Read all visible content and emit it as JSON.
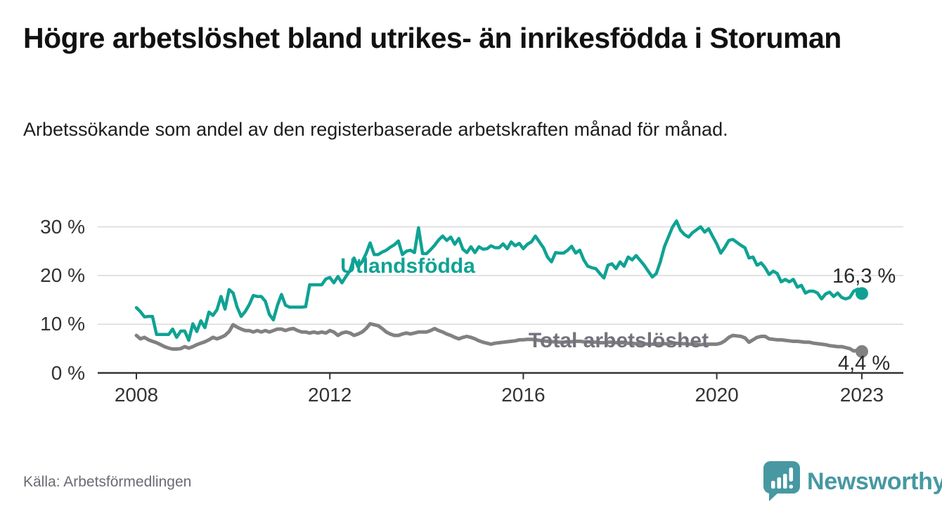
{
  "header": {
    "title": "Högre arbetslöshet bland utrikes- än inrikesfödda i Storuman",
    "subtitle": "Arbetssökande som andel av den registerbaserade arbetskraften månad för månad."
  },
  "footer": {
    "source": "Källa: Arbetsförmedlingen",
    "logo_text": "Newsworthy"
  },
  "colors": {
    "teal_line": "#0fa294",
    "gray_line": "#818181",
    "gray_label": "#75727e",
    "grid": "#dadada",
    "axis": "#333333",
    "tick_text": "#333333",
    "value_label": "#2b2b2b",
    "logo_teal": "#4798a2"
  },
  "chart_data": {
    "type": "line",
    "title": "Högre arbetslöshet bland utrikes- än inrikesfödda i Storuman",
    "subtitle": "Arbetssökande som andel av den registerbaserade arbetskraften månad för månad.",
    "x_unit": "monthly",
    "x_start": "2008-01",
    "x_end": "2023-01",
    "ylim": [
      0,
      33
    ],
    "grid": "horizontal",
    "legend_position": "inline-labels",
    "y_ticks": [
      {
        "label": "30 %",
        "value": 30
      },
      {
        "label": "20 %",
        "value": 20
      },
      {
        "label": "10 %",
        "value": 10
      },
      {
        "label": "0 %",
        "value": 0
      }
    ],
    "x_ticks": [
      {
        "label": "2008",
        "year": 2008
      },
      {
        "label": "2012",
        "year": 2012
      },
      {
        "label": "2016",
        "year": 2016
      },
      {
        "label": "2020",
        "year": 2020
      },
      {
        "label": "2023",
        "year": 2023
      }
    ],
    "series": [
      {
        "name": "Utlandsfödda",
        "color": "#0fa294",
        "label_color": "#0fa294",
        "end_label": "16,3 %",
        "end_value": 16.3,
        "values": [
          13.4,
          12.6,
          11.5,
          11.6,
          11.6,
          7.9,
          7.9,
          7.9,
          7.9,
          9.0,
          7.3,
          8.6,
          8.6,
          6.7,
          10.1,
          8.5,
          10.7,
          9.3,
          12.5,
          11.8,
          13.0,
          15.7,
          13.1,
          17.1,
          16.4,
          13.5,
          11.6,
          12.6,
          14.0,
          15.9,
          15.7,
          15.7,
          14.7,
          12.0,
          10.9,
          13.9,
          16.1,
          13.9,
          13.5,
          13.5,
          13.5,
          13.5,
          13.6,
          18.1,
          18.1,
          18.1,
          18.1,
          19.3,
          19.6,
          18.5,
          19.8,
          18.5,
          19.8,
          21.0,
          23.6,
          21.8,
          22.8,
          24.5,
          26.7,
          24.3,
          24.3,
          24.8,
          25.2,
          25.8,
          26.3,
          27.1,
          24.3,
          25.0,
          25.2,
          24.7,
          29.8,
          24.5,
          24.5,
          25.3,
          26.2,
          27.3,
          28.1,
          27.2,
          27.9,
          26.4,
          27.6,
          25.4,
          24.7,
          25.9,
          24.7,
          25.9,
          25.4,
          25.5,
          26.1,
          25.7,
          25.7,
          26.5,
          25.5,
          26.9,
          26.1,
          26.6,
          25.5,
          26.4,
          26.9,
          28.1,
          26.9,
          25.7,
          23.8,
          22.8,
          24.7,
          24.6,
          24.6,
          25.2,
          26.0,
          24.6,
          25.2,
          23.2,
          21.9,
          21.6,
          21.4,
          20.4,
          19.5,
          22.1,
          22.4,
          21.4,
          22.8,
          21.9,
          23.8,
          23.2,
          24.1,
          23.1,
          22.1,
          20.9,
          19.7,
          20.4,
          22.8,
          25.9,
          27.9,
          29.9,
          31.2,
          29.3,
          28.4,
          27.9,
          28.8,
          29.4,
          30.0,
          28.9,
          29.6,
          28.0,
          26.5,
          24.6,
          25.8,
          27.2,
          27.4,
          26.8,
          26.2,
          25.7,
          23.6,
          23.8,
          22.1,
          22.6,
          21.6,
          20.2,
          20.9,
          20.4,
          18.7,
          19.2,
          18.7,
          19.2,
          17.6,
          18.0,
          16.4,
          16.8,
          16.8,
          16.4,
          15.2,
          16.2,
          16.6,
          15.7,
          16.4,
          15.5,
          15.2,
          15.5,
          16.8,
          17.2,
          16.3
        ]
      },
      {
        "name": "Total arbetslöshet",
        "color": "#818181",
        "label_color": "#75727e",
        "end_label": "4,4 %",
        "end_value": 4.4,
        "values": [
          7.7,
          7.0,
          7.3,
          6.8,
          6.5,
          6.2,
          5.8,
          5.4,
          5.1,
          4.9,
          4.9,
          5.0,
          5.4,
          5.1,
          5.4,
          5.8,
          6.1,
          6.4,
          6.8,
          7.3,
          7.0,
          7.3,
          7.7,
          8.5,
          9.9,
          9.4,
          9.0,
          8.7,
          8.7,
          8.4,
          8.7,
          8.4,
          8.7,
          8.4,
          8.7,
          9.0,
          9.0,
          8.7,
          9.0,
          9.1,
          8.7,
          8.4,
          8.4,
          8.2,
          8.4,
          8.2,
          8.4,
          8.2,
          8.7,
          8.4,
          7.7,
          8.2,
          8.4,
          8.2,
          7.7,
          8.0,
          8.4,
          9.1,
          10.1,
          9.9,
          9.7,
          9.1,
          8.4,
          8.0,
          7.7,
          7.7,
          8.0,
          8.2,
          8.0,
          8.2,
          8.4,
          8.4,
          8.4,
          8.7,
          9.1,
          8.7,
          8.4,
          8.0,
          7.7,
          7.3,
          7.0,
          7.3,
          7.5,
          7.3,
          7.0,
          6.6,
          6.3,
          6.1,
          5.9,
          6.1,
          6.2,
          6.3,
          6.4,
          6.5,
          6.6,
          6.8,
          6.8,
          6.9,
          6.9,
          6.8,
          6.7,
          6.6,
          6.5,
          6.4,
          6.4,
          6.3,
          6.3,
          6.4,
          6.4,
          6.5,
          6.5,
          6.4,
          6.4,
          6.3,
          6.3,
          6.2,
          6.2,
          6.3,
          6.3,
          6.2,
          6.2,
          6.2,
          6.1,
          6.1,
          6.0,
          6.0,
          6.0,
          5.9,
          5.9,
          6.0,
          6.0,
          6.0,
          6.0,
          6.1,
          6.1,
          6.0,
          6.0,
          5.9,
          5.9,
          5.9,
          5.8,
          5.9,
          5.9,
          5.9,
          5.9,
          6.1,
          6.6,
          7.3,
          7.7,
          7.6,
          7.5,
          7.2,
          6.3,
          6.8,
          7.3,
          7.5,
          7.5,
          7.0,
          6.9,
          6.8,
          6.8,
          6.7,
          6.6,
          6.5,
          6.5,
          6.4,
          6.3,
          6.3,
          6.1,
          6.0,
          5.9,
          5.8,
          5.6,
          5.5,
          5.4,
          5.4,
          5.2,
          5.0,
          4.5,
          4.7,
          4.4
        ]
      }
    ]
  }
}
